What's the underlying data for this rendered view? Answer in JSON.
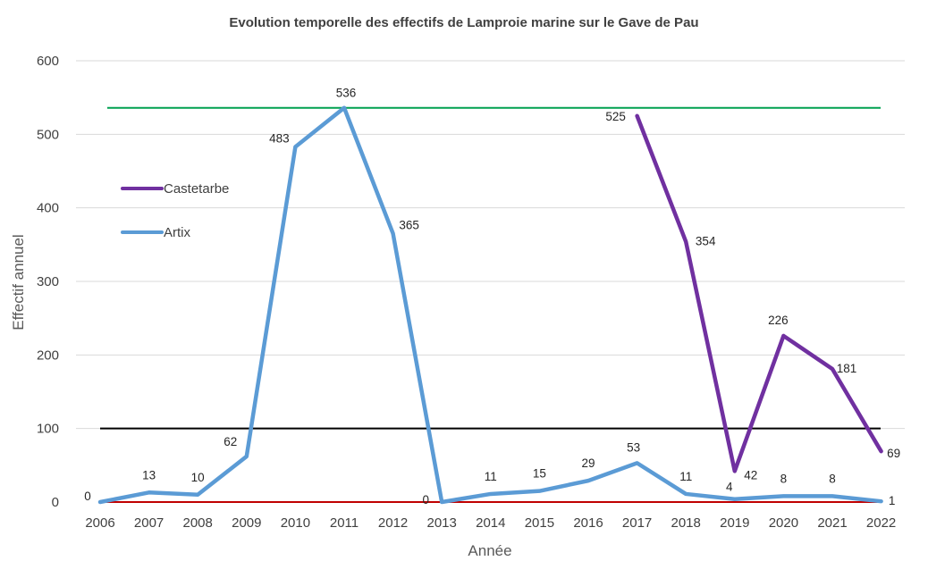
{
  "chart_data": {
    "type": "line",
    "title": "Evolution temporelle des effectifs de Lamproie marine sur le Gave de Pau",
    "xlabel": "Année",
    "ylabel": "Effectif annuel",
    "categories": [
      "2006",
      "2007",
      "2008",
      "2009",
      "2010",
      "2011",
      "2012",
      "2013",
      "2014",
      "2015",
      "2016",
      "2017",
      "2018",
      "2019",
      "2020",
      "2021",
      "2022"
    ],
    "ylim": [
      0,
      600
    ],
    "yticks": [
      0,
      100,
      200,
      300,
      400,
      500,
      600
    ],
    "grid": true,
    "legend_position": "upper-left inside",
    "series": [
      {
        "name": "Castetarbe",
        "color": "#7030A0",
        "values": [
          null,
          null,
          null,
          null,
          null,
          null,
          null,
          null,
          null,
          null,
          null,
          525,
          354,
          42,
          226,
          181,
          69
        ]
      },
      {
        "name": "Artix",
        "color": "#5B9BD5",
        "values": [
          0,
          13,
          10,
          62,
          483,
          536,
          365,
          0,
          11,
          15,
          29,
          53,
          11,
          4,
          8,
          8,
          1
        ]
      }
    ],
    "reference_lines": [
      {
        "value": 536,
        "color": "#00A050"
      },
      {
        "value": 100,
        "color": "#000000"
      },
      {
        "value": 0,
        "color": "#C00000"
      }
    ]
  }
}
